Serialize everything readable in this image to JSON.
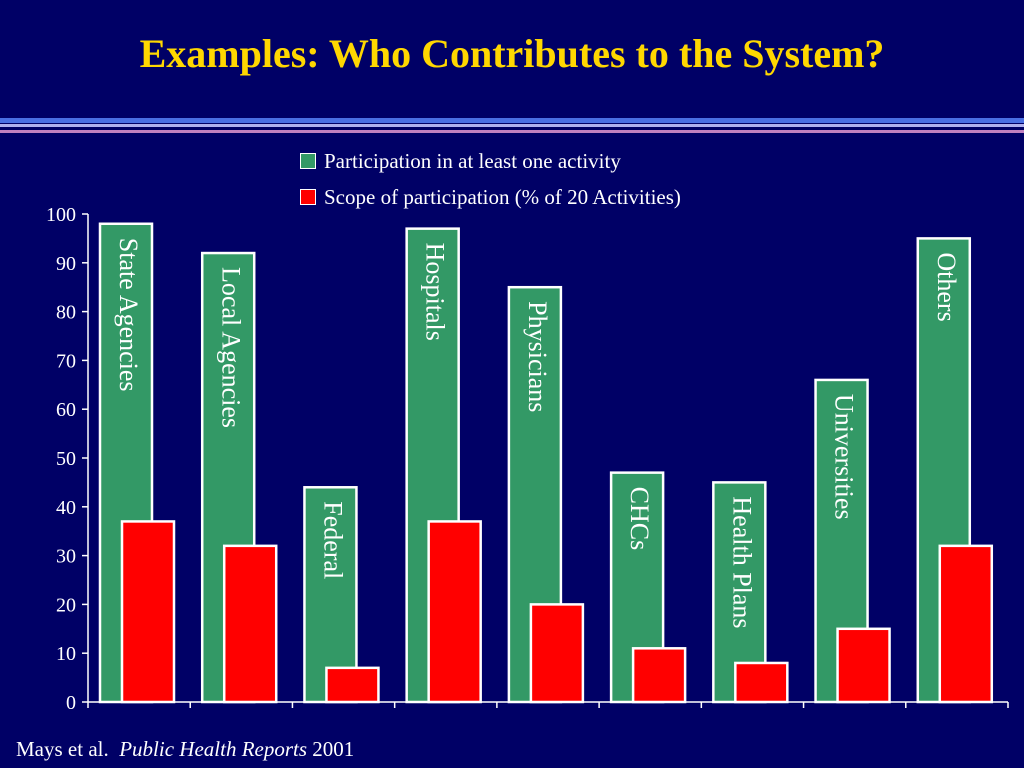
{
  "slide": {
    "title": "Examples: Who Contributes to the System?",
    "citation_authors": "Mays et al.",
    "citation_journal": "Public Health Reports",
    "citation_year": "2001"
  },
  "colors": {
    "background": "#000066",
    "title": "#FFD700",
    "participation": "#339966",
    "scope": "#FF0000",
    "text": "#FFFFFF"
  },
  "chart_data": {
    "type": "bar",
    "categories": [
      "State Agencies",
      "Local Agencies",
      "Federal",
      "Hospitals",
      "Physicians",
      "CHCs",
      "Health Plans",
      "Universities",
      "Others"
    ],
    "series": [
      {
        "name": "Participation in at least one activity",
        "values": [
          98,
          92,
          44,
          97,
          85,
          47,
          45,
          66,
          95
        ]
      },
      {
        "name": "Scope of participation (% of 20 Activities)",
        "values": [
          37,
          32,
          7,
          37,
          20,
          11,
          8,
          15,
          32
        ]
      }
    ],
    "ylim": [
      0,
      100
    ],
    "yticks": [
      "0",
      "10",
      "20",
      "30",
      "40",
      "50",
      "60",
      "70",
      "80",
      "90",
      "100"
    ],
    "legend_position": "top-center",
    "grid": false,
    "category_labels_inside_bars": true
  }
}
